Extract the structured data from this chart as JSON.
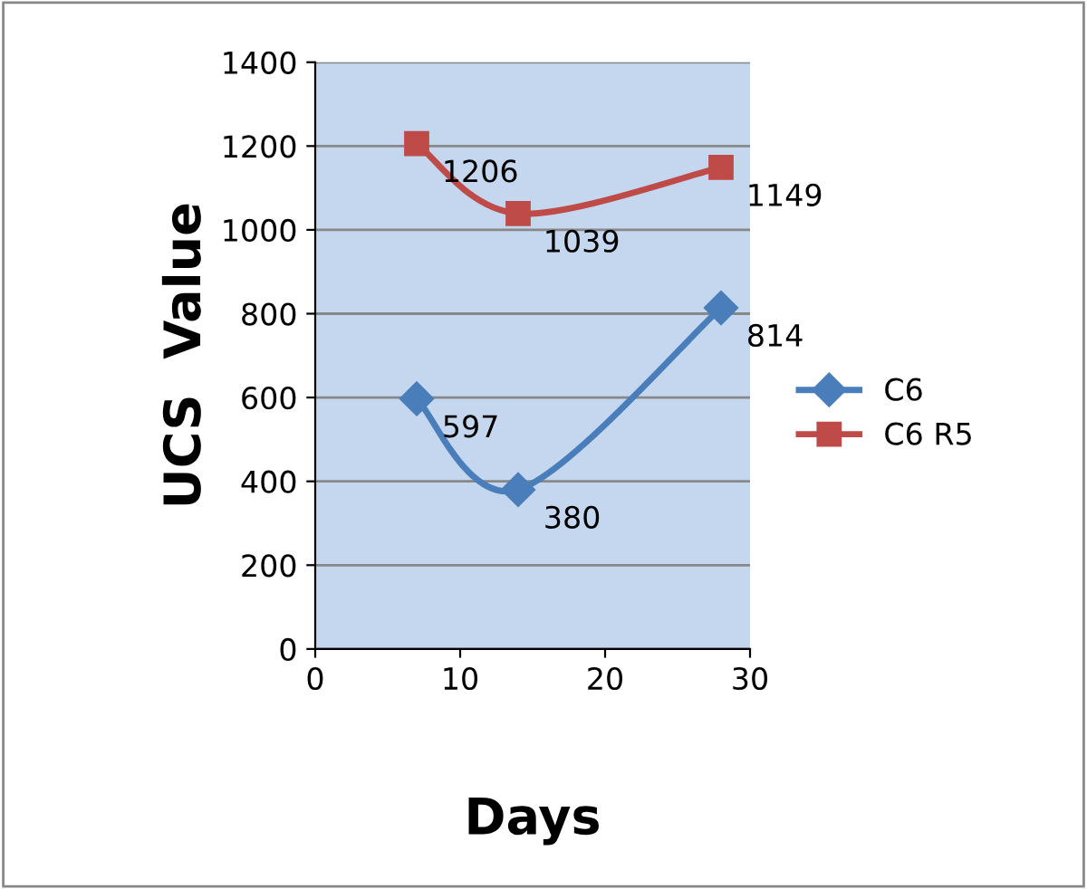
{
  "chart_data": {
    "type": "line",
    "xlabel": "Days",
    "ylabel": "UCS  Value",
    "x": [
      7,
      14,
      28
    ],
    "series": [
      {
        "name": "C6",
        "color": "#4a7ebb",
        "marker": "diamond",
        "values": [
          597,
          380,
          814
        ]
      },
      {
        "name": "C6 R5",
        "color": "#be4b48",
        "marker": "square",
        "values": [
          1206,
          1039,
          1149
        ]
      }
    ],
    "xlim": [
      0,
      30
    ],
    "xticks": [
      0,
      10,
      20,
      30
    ],
    "ylim": [
      0,
      1400
    ],
    "yticks": [
      0,
      200,
      400,
      600,
      800,
      1000,
      1200,
      1400
    ],
    "grid": "y",
    "legend": "right",
    "data_labels": true,
    "line_style": "solid"
  }
}
